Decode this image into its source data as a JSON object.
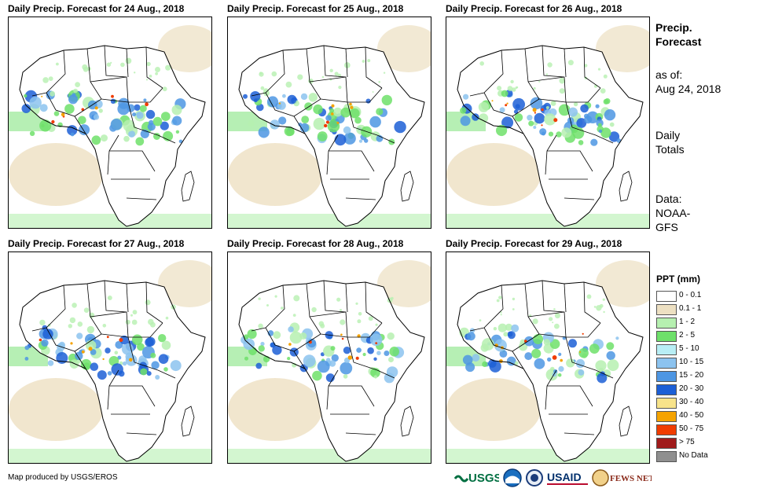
{
  "panels": [
    {
      "title": "Daily Precip. Forecast for 24 Aug., 2018"
    },
    {
      "title": "Daily Precip. Forecast for 25 Aug., 2018"
    },
    {
      "title": "Daily Precip. Forecast for 26 Aug., 2018"
    },
    {
      "title": "Daily Precip. Forecast for 27 Aug., 2018"
    },
    {
      "title": "Daily Precip. Forecast for 28 Aug., 2018"
    },
    {
      "title": "Daily Precip. Forecast for 29 Aug., 2018"
    }
  ],
  "side": {
    "title_line1": "Precip.",
    "title_line2": "Forecast",
    "asof_line1": "as of:",
    "asof_line2": "Aug 24, 2018",
    "totals_line1": "Daily",
    "totals_line2": "Totals",
    "data_line1": "Data:",
    "data_line2": "NOAA-",
    "data_line3": "GFS"
  },
  "legend": {
    "title": "PPT (mm)",
    "items": [
      {
        "label": "0 - 0.1",
        "color": "#ffffff"
      },
      {
        "label": "0.1 - 1",
        "color": "#ede0c2"
      },
      {
        "label": "1 - 2",
        "color": "#b6f0b0"
      },
      {
        "label": "2 - 5",
        "color": "#6ee06a"
      },
      {
        "label": "5 - 10",
        "color": "#b8eef5"
      },
      {
        "label": "10 - 15",
        "color": "#8cc3ef"
      },
      {
        "label": "15 - 20",
        "color": "#4d96e3"
      },
      {
        "label": "20 - 30",
        "color": "#1c5fd6"
      },
      {
        "label": "30 - 40",
        "color": "#f7e38a"
      },
      {
        "label": "40 - 50",
        "color": "#f5a300"
      },
      {
        "label": "50 - 75",
        "color": "#f03c00"
      },
      {
        "label": "> 75",
        "color": "#a01b1b"
      },
      {
        "label": "No Data",
        "color": "#8f8f8f"
      }
    ]
  },
  "credit": "Map produced by USGS/EROS",
  "logos": {
    "usgs": "USGS",
    "usaid": "USAID",
    "fewsnet": "FEWS NET"
  }
}
